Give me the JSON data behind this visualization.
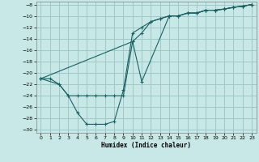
{
  "xlabel": "Humidex (Indice chaleur)",
  "bg_color": "#c8e8e8",
  "grid_color": "#a0c8c8",
  "line_color": "#1a6060",
  "xlim": [
    -0.5,
    23.5
  ],
  "ylim": [
    -30.5,
    -7.5
  ],
  "xticks": [
    0,
    1,
    2,
    3,
    4,
    5,
    6,
    7,
    8,
    9,
    10,
    11,
    12,
    13,
    14,
    15,
    16,
    17,
    18,
    19,
    20,
    21,
    22,
    23
  ],
  "yticks": [
    -30,
    -28,
    -26,
    -24,
    -22,
    -20,
    -18,
    -16,
    -14,
    -12,
    -10,
    -8
  ],
  "curve1_x": [
    0,
    1,
    2,
    3,
    4,
    5,
    6,
    7,
    8,
    9,
    10,
    11,
    12,
    13,
    14,
    15,
    16,
    17,
    18,
    19,
    20,
    21,
    22,
    23
  ],
  "curve1_y": [
    -21,
    -21,
    -22,
    -24,
    -27,
    -29,
    -29,
    -29,
    -28.5,
    -23,
    -13,
    -12,
    -11,
    -10.5,
    -10,
    -10,
    -9.5,
    -9.5,
    -9,
    -9,
    -8.8,
    -8.5,
    -8.3,
    -8
  ],
  "curve2_x": [
    0,
    2,
    3,
    4,
    5,
    6,
    7,
    8,
    9,
    10,
    11,
    12,
    13,
    14,
    15,
    16,
    17,
    18,
    19,
    20,
    21,
    22,
    23
  ],
  "curve2_y": [
    -21,
    -22,
    -24,
    -24,
    -24,
    -24,
    -24,
    -24,
    -24,
    -14.5,
    -13,
    -11,
    -10.5,
    -10,
    -10,
    -9.5,
    -9.5,
    -9,
    -9,
    -8.8,
    -8.5,
    -8.3,
    -8
  ],
  "curve3_x": [
    0,
    10,
    11,
    14,
    15,
    16,
    17,
    18,
    19,
    20,
    21,
    22,
    23
  ],
  "curve3_y": [
    -21,
    -14.5,
    -21.5,
    -10,
    -10,
    -9.5,
    -9.5,
    -9,
    -9,
    -8.8,
    -8.5,
    -8.3,
    -8
  ]
}
